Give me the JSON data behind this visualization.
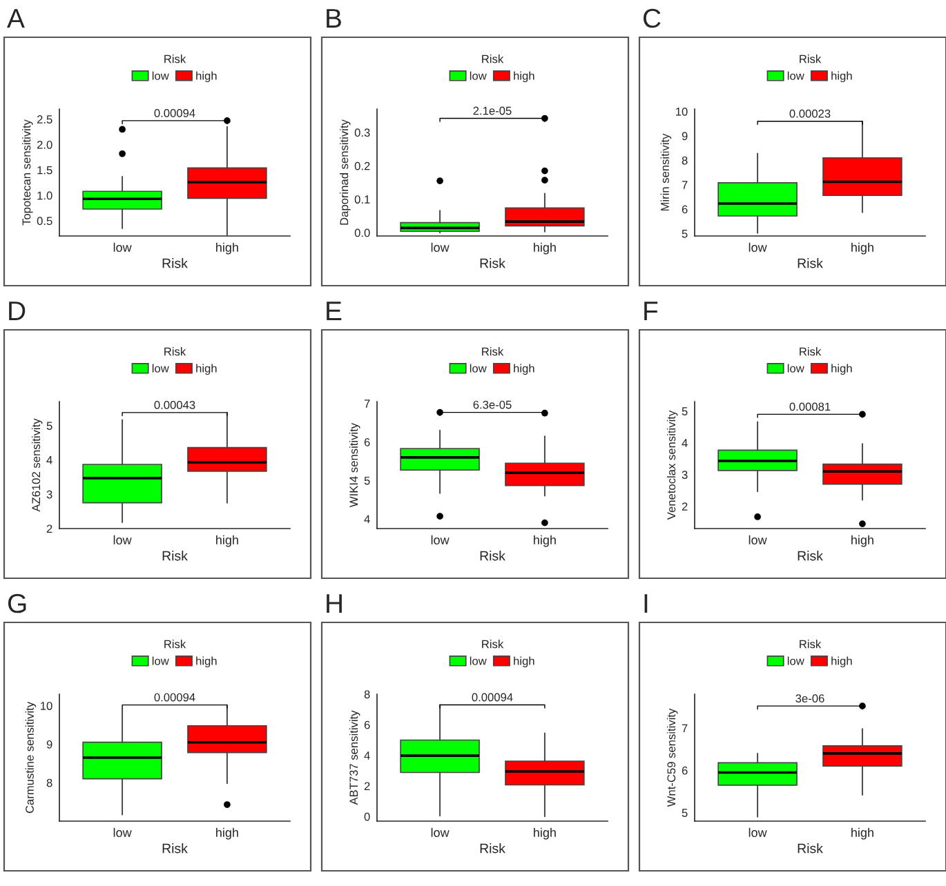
{
  "chart_data": [
    {
      "type": "box",
      "title": "A",
      "xlabel": "Risk",
      "ylabel": "Topotecan sensitivity",
      "legend_title": "Risk",
      "legend": "top",
      "categories": [
        "low",
        "high"
      ],
      "ylim": [
        0.2,
        2.7
      ],
      "yticks": [
        0.5,
        {
          "value": 1,
          "label": "1.0"
        },
        1.5,
        {
          "value": 2,
          "label": "2.0"
        },
        2.5
      ],
      "annotations": [
        "0.00094"
      ],
      "series": [
        {
          "name": "low",
          "color": "#00ff00",
          "boxes": [
            {
              "low": 0.35,
              "q1": 0.73,
              "median": 0.93,
              "q3": 1.08,
              "high": 1.37,
              "outliers": [
                1.82,
                2.3
              ]
            },
            null
          ]
        },
        {
          "name": "high",
          "color": "#ff0000",
          "boxes": [
            null,
            {
              "low": 0.22,
              "q1": 0.94,
              "median": 1.26,
              "q3": 1.54,
              "high": 2.35,
              "outliers": [
                2.47
              ]
            }
          ]
        }
      ]
    },
    {
      "type": "box",
      "title": "B",
      "xlabel": "Risk",
      "ylabel": "Daporinad sensitivity",
      "legend_title": "Risk",
      "legend": "top",
      "categories": [
        "low",
        "high"
      ],
      "ylim": [
        -0.01,
        0.37
      ],
      "yticks": [
        {
          "value": 0,
          "label": "0.0"
        },
        0.1,
        0.2,
        0.3
      ],
      "annotations": [
        "2.1e-05"
      ],
      "series": [
        {
          "name": "low",
          "color": "#00ff00",
          "boxes": [
            {
              "low": 0.0,
              "q1": 0.004,
              "median": 0.014,
              "q3": 0.03,
              "high": 0.066,
              "outliers": [
                0.155
              ]
            },
            null
          ]
        },
        {
          "name": "high",
          "color": "#ff0000",
          "boxes": [
            null,
            {
              "low": 0.003,
              "q1": 0.02,
              "median": 0.033,
              "q3": 0.074,
              "high": 0.117,
              "outliers": [
                0.157,
                0.185,
                0.342
              ]
            }
          ]
        }
      ]
    },
    {
      "type": "box",
      "title": "C",
      "xlabel": "Risk",
      "ylabel": "Mirin sensitivity",
      "legend_title": "Risk",
      "legend": "top",
      "categories": [
        "low",
        "high"
      ],
      "ylim": [
        4.9,
        10.1
      ],
      "yticks": [
        5,
        6,
        7,
        8,
        9,
        10
      ],
      "annotations": [
        "0.00023"
      ],
      "series": [
        {
          "name": "low",
          "color": "#00ff00",
          "boxes": [
            {
              "low": 5.02,
              "q1": 5.72,
              "median": 6.23,
              "q3": 7.08,
              "high": 8.28
            },
            null
          ]
        },
        {
          "name": "high",
          "color": "#ff0000",
          "boxes": [
            null,
            {
              "low": 5.87,
              "q1": 6.56,
              "median": 7.12,
              "q3": 8.1,
              "high": 9.6
            }
          ]
        }
      ]
    },
    {
      "type": "box",
      "title": "D",
      "xlabel": "Risk",
      "ylabel": "AZ6102 sensitivity",
      "legend_title": "Risk",
      "legend": "top",
      "categories": [
        "low",
        "high"
      ],
      "ylim": [
        2.0,
        5.7
      ],
      "yticks": [
        2,
        3,
        4,
        5
      ],
      "annotations": [
        "0.00043"
      ],
      "series": [
        {
          "name": "low",
          "color": "#00ff00",
          "boxes": [
            {
              "low": 2.18,
              "q1": 2.75,
              "median": 3.47,
              "q3": 3.87,
              "high": 5.17
            },
            null
          ]
        },
        {
          "name": "high",
          "color": "#ff0000",
          "boxes": [
            null,
            {
              "low": 2.75,
              "q1": 3.67,
              "median": 3.93,
              "q3": 4.36,
              "high": 5.38
            }
          ]
        }
      ]
    },
    {
      "type": "box",
      "title": "E",
      "xlabel": "Risk",
      "ylabel": "WIKI4 sensitivity",
      "legend_title": "Risk",
      "legend": "top",
      "categories": [
        "low",
        "high"
      ],
      "ylim": [
        3.75,
        7.05
      ],
      "yticks": [
        4,
        5,
        6,
        7
      ],
      "annotations": [
        "6.3e-05"
      ],
      "series": [
        {
          "name": "low",
          "color": "#00ff00",
          "boxes": [
            {
              "low": 4.67,
              "q1": 5.27,
              "median": 5.6,
              "q3": 5.83,
              "high": 6.3,
              "outliers": [
                4.07,
                6.77
              ]
            },
            null
          ]
        },
        {
          "name": "high",
          "color": "#ff0000",
          "boxes": [
            null,
            {
              "low": 4.6,
              "q1": 4.87,
              "median": 5.2,
              "q3": 5.45,
              "high": 6.15,
              "outliers": [
                3.9,
                6.75
              ]
            }
          ]
        }
      ]
    },
    {
      "type": "box",
      "title": "F",
      "xlabel": "Risk",
      "ylabel": "Venetoclax sensitivity",
      "legend_title": "Risk",
      "legend": "top",
      "categories": [
        "low",
        "high"
      ],
      "ylim": [
        1.3,
        5.3
      ],
      "yticks": [
        2,
        3,
        4,
        5
      ],
      "annotations": [
        "0.00081"
      ],
      "series": [
        {
          "name": "low",
          "color": "#00ff00",
          "boxes": [
            {
              "low": 2.47,
              "q1": 3.13,
              "median": 3.43,
              "q3": 3.77,
              "high": 4.66,
              "outliers": [
                1.67
              ]
            },
            null
          ]
        },
        {
          "name": "high",
          "color": "#ff0000",
          "boxes": [
            null,
            {
              "low": 2.2,
              "q1": 2.7,
              "median": 3.1,
              "q3": 3.33,
              "high": 3.97,
              "outliers": [
                1.45,
                4.9
              ]
            }
          ]
        }
      ]
    },
    {
      "type": "box",
      "title": "G",
      "xlabel": "Risk",
      "ylabel": "Carmustine sensitivity",
      "legend_title": "Risk",
      "legend": "top",
      "categories": [
        "low",
        "high"
      ],
      "ylim": [
        7.0,
        10.3
      ],
      "yticks": [
        8,
        9,
        10
      ],
      "annotations": [
        "0.00094"
      ],
      "series": [
        {
          "name": "low",
          "color": "#00ff00",
          "boxes": [
            {
              "low": 7.17,
              "q1": 8.1,
              "median": 8.65,
              "q3": 9.05,
              "high": 9.93
            },
            null
          ]
        },
        {
          "name": "high",
          "color": "#ff0000",
          "boxes": [
            null,
            {
              "low": 7.98,
              "q1": 8.78,
              "median": 9.05,
              "q3": 9.48,
              "high": 10.02,
              "outliers": [
                7.43
              ]
            }
          ]
        }
      ]
    },
    {
      "type": "box",
      "title": "H",
      "xlabel": "Risk",
      "ylabel": "ABT737 sensitivity",
      "legend_title": "Risk",
      "legend": "top",
      "categories": [
        "low",
        "high"
      ],
      "ylim": [
        -0.3,
        8.0
      ],
      "yticks": [
        0,
        2,
        4,
        6,
        8
      ],
      "annotations": [
        "0.00094"
      ],
      "series": [
        {
          "name": "low",
          "color": "#00ff00",
          "boxes": [
            {
              "low": 0.05,
              "q1": 2.88,
              "median": 3.98,
              "q3": 5.0,
              "high": 7.3
            },
            null
          ]
        },
        {
          "name": "high",
          "color": "#ff0000",
          "boxes": [
            null,
            {
              "low": 0.0,
              "q1": 2.07,
              "median": 2.95,
              "q3": 3.62,
              "high": 5.45
            }
          ]
        }
      ]
    },
    {
      "type": "box",
      "title": "I",
      "xlabel": "Risk",
      "ylabel": "Wnt-C59 sensitivity",
      "legend_title": "Risk",
      "legend": "top",
      "categories": [
        "low",
        "high"
      ],
      "ylim": [
        4.8,
        7.8
      ],
      "yticks": [
        5,
        6,
        7
      ],
      "annotations": [
        "3e-06"
      ],
      "series": [
        {
          "name": "low",
          "color": "#00ff00",
          "boxes": [
            {
              "low": 4.9,
              "q1": 5.65,
              "median": 5.95,
              "q3": 6.18,
              "high": 6.4
            },
            null
          ]
        },
        {
          "name": "high",
          "color": "#ff0000",
          "boxes": [
            null,
            {
              "low": 5.42,
              "q1": 6.1,
              "median": 6.4,
              "q3": 6.58,
              "high": 6.98,
              "outliers": [
                7.52
              ]
            }
          ]
        }
      ]
    }
  ]
}
